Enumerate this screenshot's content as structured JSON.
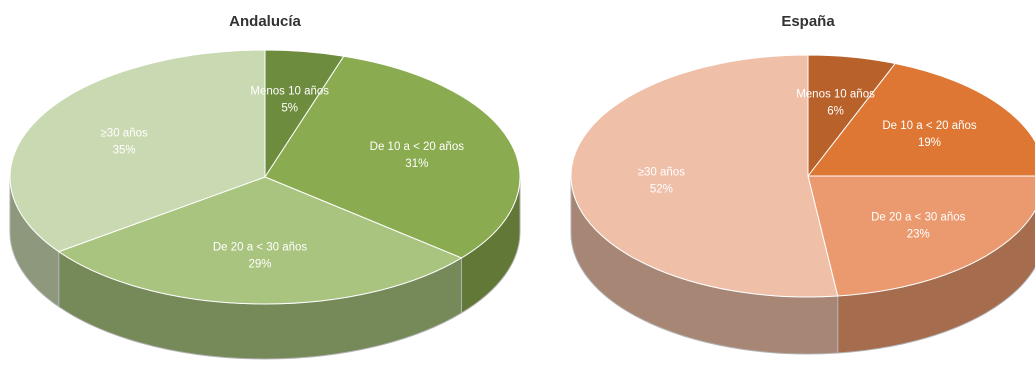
{
  "chart_data": [
    {
      "type": "pie",
      "title": "Andalucía",
      "categories": [
        "Menos 10 años",
        "De 10 a < 20 años",
        "De 20 a < 30 años",
        "≥30 años"
      ],
      "values": [
        5,
        31,
        29,
        35
      ],
      "value_labels": [
        "5%",
        "31%",
        "29%",
        "35%"
      ],
      "colors": [
        "#6e8c3e",
        "#8aab4f",
        "#a9c47f",
        "#c9d9b1"
      ]
    },
    {
      "type": "pie",
      "title": "España",
      "categories": [
        "Menos 10 años",
        "De 10 a < 20 años",
        "De 20 a < 30 años",
        "≥30 años"
      ],
      "values": [
        6,
        19,
        23,
        52
      ],
      "value_labels": [
        "6%",
        "19%",
        "23%",
        "52%"
      ],
      "colors": [
        "#b8612a",
        "#dd7733",
        "#eb9a70",
        "#efbfa8"
      ]
    }
  ]
}
